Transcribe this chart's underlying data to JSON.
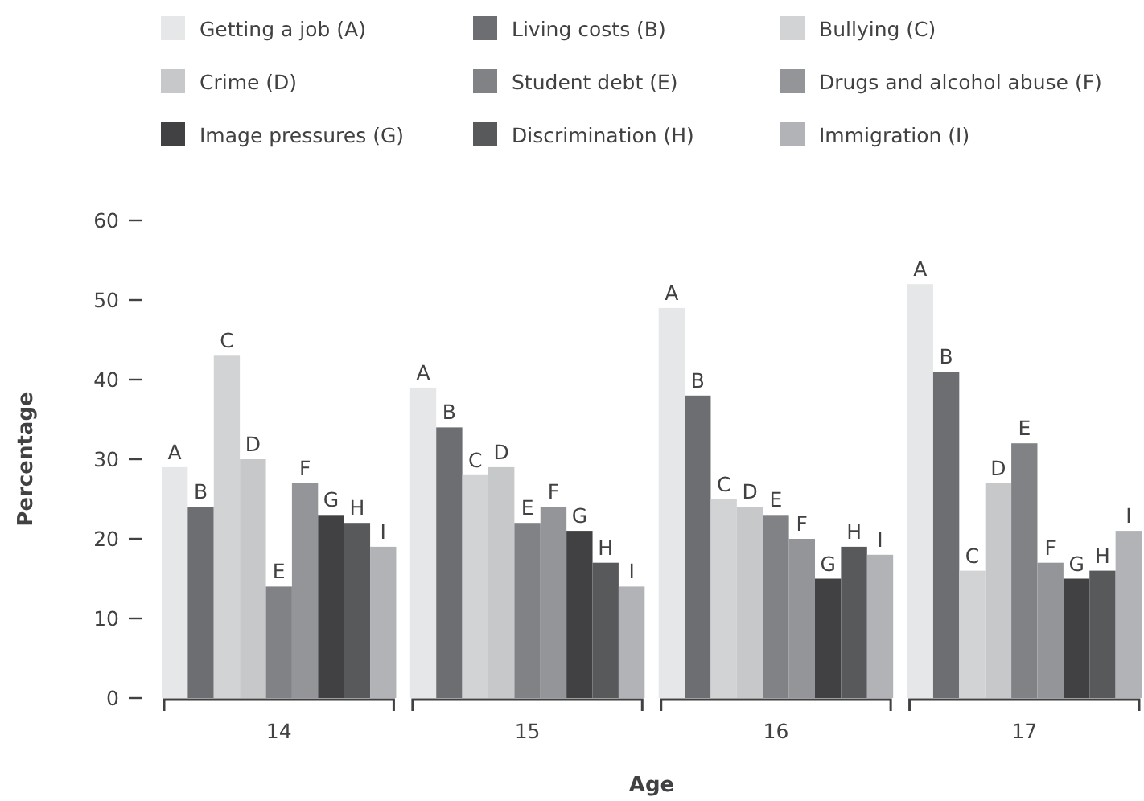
{
  "chart_data": {
    "type": "bar",
    "xlabel": "Age",
    "ylabel": "Percentage",
    "categories": [
      "14",
      "15",
      "16",
      "17"
    ],
    "ylim": [
      0,
      60
    ],
    "yticks": [
      0,
      10,
      20,
      30,
      40,
      50,
      60
    ],
    "grid": false,
    "legend": "top",
    "series": [
      {
        "name": "Getting a job (A)",
        "color": "#e6e7e8",
        "values": [
          29,
          39,
          49,
          52
        ],
        "value_labels": [
          "A",
          "A",
          "A",
          "A"
        ]
      },
      {
        "name": "Living costs (B)",
        "color": "#6d6e71",
        "values": [
          24,
          34,
          38,
          41
        ],
        "value_labels": [
          "B",
          "B",
          "B",
          "B"
        ]
      },
      {
        "name": "Bullying (C)",
        "color": "#d1d3d4",
        "values": [
          43,
          28,
          25,
          16
        ],
        "value_labels": [
          "C",
          "C",
          "C",
          "C"
        ]
      },
      {
        "name": "Crime (D)",
        "color": "#c7c8ca",
        "values": [
          30,
          29,
          24,
          27
        ],
        "value_labels": [
          "D",
          "D",
          "D",
          "D"
        ]
      },
      {
        "name": "Student debt (E)",
        "color": "#808285",
        "values": [
          14,
          22,
          23,
          32
        ],
        "value_labels": [
          "E",
          "E",
          "E",
          "E"
        ]
      },
      {
        "name": "Drugs and alcohol abuse (F)",
        "color": "#939598",
        "values": [
          27,
          24,
          20,
          17
        ],
        "value_labels": [
          "F",
          "F",
          "F",
          "F"
        ]
      },
      {
        "name": "Image pressures (G)",
        "color": "#414042",
        "values": [
          23,
          21,
          15,
          15
        ],
        "value_labels": [
          "G",
          "G",
          "G",
          "G"
        ]
      },
      {
        "name": "Discrimination (H)",
        "color": "#58595b",
        "values": [
          22,
          17,
          19,
          16
        ],
        "value_labels": [
          "H",
          "H",
          "H",
          "H"
        ]
      },
      {
        "name": "Immigration (I)",
        "color": "#b1b3b6",
        "values": [
          19,
          14,
          18,
          21
        ],
        "value_labels": [
          "I",
          "I",
          "I",
          "I"
        ]
      }
    ]
  }
}
